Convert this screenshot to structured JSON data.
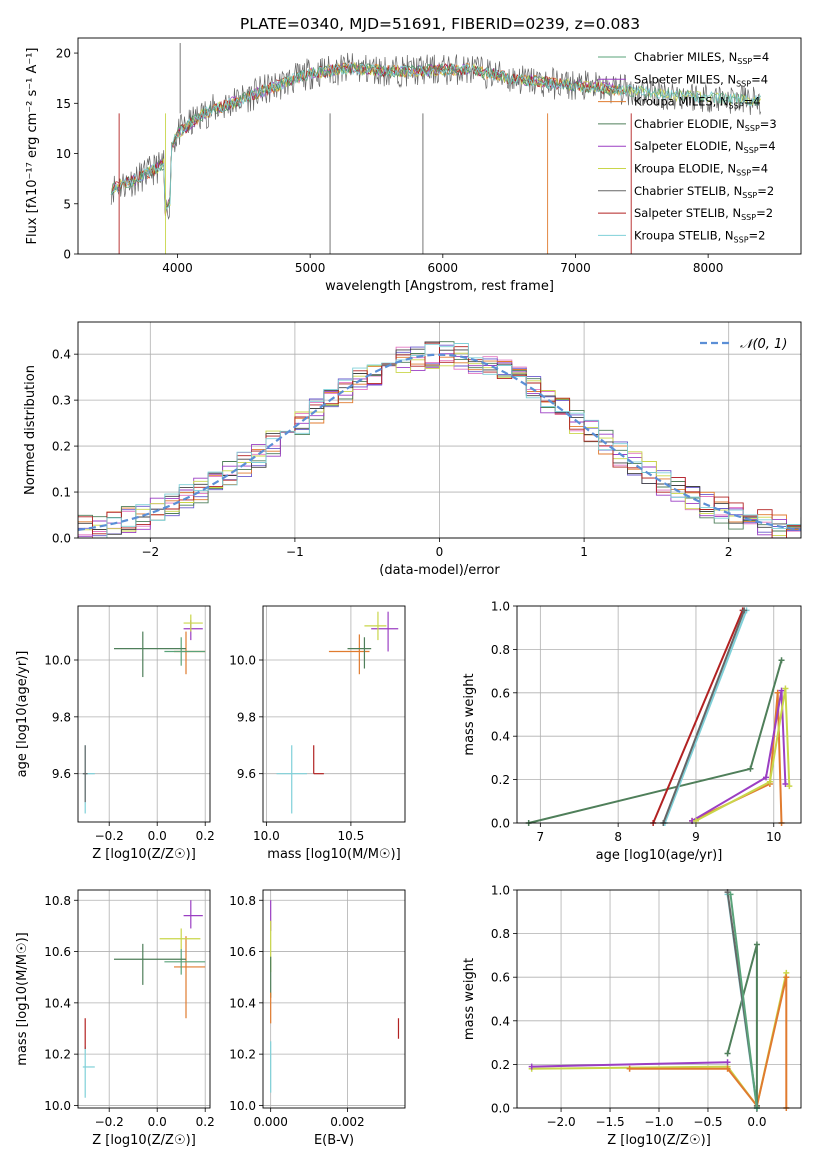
{
  "title": "PLATE=0340, MJD=51691, FIBERID=0239, z=0.083",
  "colors": {
    "chabrier_miles": "#5aa37a",
    "salpeter_miles": "#9b3fc3",
    "kroupa_miles": "#e07b2f",
    "chabrier_elodie": "#4f7f5a",
    "salpeter_elodie": "#9b3fc3",
    "kroupa_elodie": "#c9d64a",
    "chabrier_stelib": "#666666",
    "salpeter_stelib": "#b22222",
    "kroupa_stelib": "#7fd0d8",
    "grid": "#b0b0b0",
    "normal_curve": "#5b8fd6"
  },
  "chart_data": [
    {
      "id": "spectrum",
      "type": "line",
      "xlabel": "wavelength [Angstrom, rest frame]",
      "ylabel": "Flux [fλ10⁻¹⁷ erg cm⁻² s⁻¹ A⁻¹]",
      "xlim": [
        3250,
        8700
      ],
      "ylim": [
        0,
        21.5
      ],
      "xticks": [
        4000,
        5000,
        6000,
        7000,
        8000
      ],
      "yticks": [
        0,
        5,
        10,
        15,
        20
      ],
      "legend_location": "right",
      "legend": [
        {
          "label": "Chabrier MILES, N",
          "sub": "SSP",
          "tail": "=4",
          "color": "chabrier_miles"
        },
        {
          "label": "Salpeter MILES, N",
          "sub": "SSP",
          "tail": "=4",
          "color": "salpeter_miles"
        },
        {
          "label": "Kroupa MILES, N",
          "sub": "SSP",
          "tail": "=4",
          "color": "kroupa_miles"
        },
        {
          "label": "Chabrier ELODIE, N",
          "sub": "SSP",
          "tail": "=3",
          "color": "chabrier_elodie"
        },
        {
          "label": "Salpeter ELODIE, N",
          "sub": "SSP",
          "tail": "=4",
          "color": "salpeter_elodie"
        },
        {
          "label": "Kroupa ELODIE, N",
          "sub": "SSP",
          "tail": "=4",
          "color": "kroupa_elodie"
        },
        {
          "label": "Chabrier STELIB, N",
          "sub": "SSP",
          "tail": "=2",
          "color": "chabrier_stelib"
        },
        {
          "label": "Salpeter STELIB, N",
          "sub": "SSP",
          "tail": "=2",
          "color": "salpeter_stelib"
        },
        {
          "label": "Kroupa STELIB, N",
          "sub": "SSP",
          "tail": "=2",
          "color": "kroupa_stelib"
        }
      ],
      "continuum": {
        "x": [
          3500,
          3700,
          3900,
          4000,
          4200,
          4500,
          4800,
          5000,
          5300,
          5600,
          5900,
          6200,
          6500,
          6800,
          7000,
          7200,
          7400,
          7600,
          7800,
          8000,
          8200,
          8400
        ],
        "y": [
          6.5,
          7.5,
          9.0,
          12.0,
          14.0,
          15.5,
          17.0,
          18.0,
          18.5,
          18.2,
          18.3,
          18.4,
          17.5,
          17.0,
          16.8,
          16.5,
          16.3,
          16.0,
          15.8,
          15.6,
          15.4,
          15.2
        ]
      }
    },
    {
      "id": "residuals",
      "type": "line",
      "xlabel": "(data-model)/error",
      "ylabel": "Normed distribution",
      "xlim": [
        -2.5,
        2.5
      ],
      "ylim": [
        0,
        0.47
      ],
      "xticks": [
        -2,
        -1,
        0,
        1,
        2
      ],
      "xtick_labels": [
        "−2",
        "−1",
        "0",
        "1",
        "2"
      ],
      "yticks": [
        0.0,
        0.1,
        0.2,
        0.3,
        0.4
      ],
      "ytick_labels": [
        "0.0",
        "0.1",
        "0.2",
        "0.3",
        "0.4"
      ],
      "grid": true,
      "legend_location": "upper right",
      "legend_label": "𝒩(0, 1)",
      "bin_width": 0.1
    },
    {
      "id": "z_age",
      "type": "scatter",
      "xlabel": "Z [log10(Z/Z☉)]",
      "ylabel": "age [log10(age/yr)]",
      "xlim": [
        -0.33,
        0.22
      ],
      "ylim": [
        9.43,
        10.19
      ],
      "xticks": [
        -0.2,
        0.0,
        0.2
      ],
      "xtick_labels": [
        "−0.2",
        "0.0",
        "0.2"
      ],
      "yticks": [
        9.6,
        9.8,
        10.0
      ],
      "yticks_labels": [
        "9.6",
        "9.8",
        "10.0"
      ],
      "grid": true,
      "points": [
        {
          "x": 0.12,
          "y": 10.03,
          "ex": [
            0.05,
            0.08
          ],
          "ey": [
            0.08,
            0.07
          ],
          "color": "kroupa_miles"
        },
        {
          "x": 0.1,
          "y": 10.03,
          "ex": [
            0.07,
            0.1
          ],
          "ey": [
            0.05,
            0.05
          ],
          "color": "chabrier_miles"
        },
        {
          "x": -0.06,
          "y": 10.04,
          "ex": [
            0.12,
            0.18
          ],
          "ey": [
            0.1,
            0.06
          ],
          "color": "chabrier_elodie"
        },
        {
          "x": 0.14,
          "y": 10.11,
          "ex": [
            0.03,
            0.05
          ],
          "ey": [
            0.04,
            0.03
          ],
          "color": "salpeter_elodie"
        },
        {
          "x": 0.14,
          "y": 10.13,
          "ex": [
            0.03,
            0.05
          ],
          "ey": [
            0.03,
            0.03
          ],
          "color": "kroupa_elodie"
        },
        {
          "x": -0.3,
          "y": 9.6,
          "ex": [
            0.01,
            0.04
          ],
          "ey": [
            0.14,
            0.1
          ],
          "color": "kroupa_stelib"
        },
        {
          "x": -0.3,
          "y": 9.6,
          "ex": [
            0.01,
            0.01
          ],
          "ey": [
            0.1,
            0.1
          ],
          "color": "chabrier_stelib"
        }
      ]
    },
    {
      "id": "mass_age",
      "type": "scatter",
      "xlabel": "mass [log10(M/M☉)]",
      "ylabel": "",
      "xlim": [
        9.98,
        10.82
      ],
      "ylim": [
        9.43,
        10.19
      ],
      "xticks": [
        10.0,
        10.5
      ],
      "xtick_labels": [
        "10.0",
        "10.5"
      ],
      "yticks": [
        9.6,
        9.8,
        10.0
      ],
      "yticks_labels": [
        "9.6",
        "9.8",
        "10.0"
      ],
      "grid": true,
      "points": [
        {
          "x": 10.55,
          "y": 10.03,
          "ex": [
            0.18,
            0.06
          ],
          "ey": [
            0.08,
            0.06
          ],
          "color": "kroupa_miles"
        },
        {
          "x": 10.58,
          "y": 10.04,
          "ex": [
            0.1,
            0.04
          ],
          "ey": [
            0.07,
            0.04
          ],
          "color": "chabrier_elodie"
        },
        {
          "x": 10.72,
          "y": 10.11,
          "ex": [
            0.1,
            0.06
          ],
          "ey": [
            0.08,
            0.06
          ],
          "color": "salpeter_elodie"
        },
        {
          "x": 10.66,
          "y": 10.12,
          "ex": [
            0.08,
            0.05
          ],
          "ey": [
            0.05,
            0.05
          ],
          "color": "kroupa_elodie"
        },
        {
          "x": 10.15,
          "y": 9.6,
          "ex": [
            0.09,
            0.09
          ],
          "ey": [
            0.14,
            0.1
          ],
          "color": "kroupa_stelib"
        },
        {
          "x": 10.28,
          "y": 9.6,
          "ex": [
            0.0,
            0.06
          ],
          "ey": [
            0.0,
            0.1
          ],
          "color": "salpeter_stelib"
        }
      ]
    },
    {
      "id": "age_weight",
      "type": "line",
      "xlabel": "age [log10(age/yr)]",
      "ylabel": "mass weight",
      "xlim": [
        6.7,
        10.35
      ],
      "ylim": [
        0,
        1.0
      ],
      "xticks": [
        7,
        8,
        9,
        10
      ],
      "yticks": [
        0.0,
        0.2,
        0.4,
        0.6,
        0.8,
        1.0
      ],
      "yticks_labels": [
        "0.0",
        "0.2",
        "0.4",
        "0.6",
        "0.8",
        "1.0"
      ],
      "grid": true,
      "series": [
        {
          "color": "chabrier_elodie",
          "x": [
            6.85,
            9.7,
            10.1
          ],
          "y": [
            0.0,
            0.25,
            0.75
          ]
        },
        {
          "color": "salpeter_stelib",
          "x": [
            8.45,
            9.6
          ],
          "y": [
            0.0,
            0.98
          ]
        },
        {
          "color": "kroupa_stelib",
          "x": [
            8.6,
            9.65
          ],
          "y": [
            0.0,
            0.98
          ]
        },
        {
          "color": "chabrier_stelib",
          "x": [
            8.58,
            9.62
          ],
          "y": [
            0.0,
            0.98
          ]
        },
        {
          "color": "kroupa_miles",
          "x": [
            8.95,
            9.95,
            10.05,
            10.1
          ],
          "y": [
            0.01,
            0.18,
            0.6,
            0.0
          ]
        },
        {
          "color": "salpeter_elodie",
          "x": [
            8.95,
            9.9,
            10.1,
            10.15
          ],
          "y": [
            0.01,
            0.21,
            0.61,
            0.18
          ]
        },
        {
          "color": "kroupa_elodie",
          "x": [
            9.0,
            9.95,
            10.15,
            10.2
          ],
          "y": [
            0.01,
            0.19,
            0.62,
            0.17
          ]
        }
      ]
    },
    {
      "id": "z_mass",
      "type": "scatter",
      "xlabel": "Z [log10(Z/Z☉)]",
      "ylabel": "mass [log10(M/M☉)]",
      "xlim": [
        -0.33,
        0.22
      ],
      "ylim": [
        9.99,
        10.84
      ],
      "xticks": [
        -0.2,
        0.0,
        0.2
      ],
      "xtick_labels": [
        "−0.2",
        "0.0",
        "0.2"
      ],
      "yticks": [
        10.0,
        10.2,
        10.4,
        10.6,
        10.8
      ],
      "yticks_labels": [
        "10.0",
        "10.2",
        "10.4",
        "10.6",
        "10.8"
      ],
      "grid": true,
      "points": [
        {
          "x": 0.12,
          "y": 10.54,
          "ex": [
            0.05,
            0.08
          ],
          "ey": [
            0.2,
            0.12
          ],
          "color": "kroupa_miles"
        },
        {
          "x": 0.1,
          "y": 10.56,
          "ex": [
            0.07,
            0.1
          ],
          "ey": [
            0.05,
            0.05
          ],
          "color": "chabrier_miles"
        },
        {
          "x": -0.06,
          "y": 10.57,
          "ex": [
            0.12,
            0.18
          ],
          "ey": [
            0.1,
            0.06
          ],
          "color": "chabrier_elodie"
        },
        {
          "x": 0.14,
          "y": 10.74,
          "ex": [
            0.03,
            0.05
          ],
          "ey": [
            0.05,
            0.06
          ],
          "color": "salpeter_elodie"
        },
        {
          "x": 0.1,
          "y": 10.65,
          "ex": [
            0.09,
            0.08
          ],
          "ey": [
            0.04,
            0.04
          ],
          "color": "kroupa_elodie"
        },
        {
          "x": -0.3,
          "y": 10.15,
          "ex": [
            0.01,
            0.04
          ],
          "ey": [
            0.12,
            0.08
          ],
          "color": "kroupa_stelib"
        },
        {
          "x": -0.3,
          "y": 10.28,
          "ex": [
            0.0,
            0.0
          ],
          "ey": [
            0.06,
            0.06
          ],
          "color": "salpeter_stelib"
        }
      ]
    },
    {
      "id": "ebv_mass",
      "type": "scatter",
      "xlabel": "E(B-V)",
      "ylabel": "",
      "xlim": [
        -0.0002,
        0.0035
      ],
      "ylim": [
        9.99,
        10.84
      ],
      "xticks": [
        0.0,
        0.002
      ],
      "xtick_labels": [
        "0.000",
        "0.002"
      ],
      "yticks": [
        10.0,
        10.2,
        10.4,
        10.6,
        10.8
      ],
      "yticks_labels": [
        "10.0",
        "10.2",
        "10.4",
        "10.6",
        "10.8"
      ],
      "grid": true,
      "points": [
        {
          "x": 0.0,
          "y": 10.74,
          "ex": [
            0,
            0
          ],
          "ey": [
            0.06,
            0.06
          ],
          "color": "salpeter_elodie"
        },
        {
          "x": 0.0,
          "y": 10.62,
          "ex": [
            0,
            0
          ],
          "ey": [
            0.1,
            0.1
          ],
          "color": "kroupa_elodie"
        },
        {
          "x": 0.0,
          "y": 10.5,
          "ex": [
            0,
            0
          ],
          "ey": [
            0.08,
            0.08
          ],
          "color": "chabrier_elodie"
        },
        {
          "x": 0.0,
          "y": 10.38,
          "ex": [
            0,
            0
          ],
          "ey": [
            0.06,
            0.06
          ],
          "color": "kroupa_miles"
        },
        {
          "x": 0.0,
          "y": 10.15,
          "ex": [
            0,
            0
          ],
          "ey": [
            0.1,
            0.1
          ],
          "color": "kroupa_stelib"
        },
        {
          "x": 0.00333,
          "y": 10.3,
          "ex": [
            0,
            0
          ],
          "ey": [
            0.04,
            0.04
          ],
          "color": "salpeter_stelib"
        }
      ]
    },
    {
      "id": "z_weight",
      "type": "line",
      "xlabel": "Z [log10(Z/Z☉)]",
      "ylabel": "mass weight",
      "xlim": [
        -2.45,
        0.45
      ],
      "ylim": [
        0,
        1.0
      ],
      "xticks": [
        -2.0,
        -1.5,
        -1.0,
        -0.5,
        0.0
      ],
      "xtick_labels": [
        "−2.0",
        "−1.5",
        "−1.0",
        "−0.5",
        "0.0"
      ],
      "yticks": [
        0.0,
        0.2,
        0.4,
        0.6,
        0.8,
        1.0
      ],
      "yticks_labels": [
        "0.0",
        "0.2",
        "0.4",
        "0.6",
        "0.8",
        "1.0"
      ],
      "grid": true,
      "series": [
        {
          "color": "kroupa_elodie",
          "x": [
            -2.3,
            -0.3,
            0.0,
            0.3
          ],
          "y": [
            0.18,
            0.19,
            0.01,
            0.62
          ]
        },
        {
          "color": "salpeter_elodie",
          "x": [
            -2.3,
            -0.3
          ],
          "y": [
            0.19,
            0.21
          ]
        },
        {
          "color": "kroupa_miles",
          "x": [
            -1.3,
            -0.3,
            0.0,
            0.3,
            0.3
          ],
          "y": [
            0.18,
            0.18,
            0.01,
            0.6,
            0.0
          ]
        },
        {
          "color": "chabrier_elodie",
          "x": [
            -0.3,
            0.0,
            0.0
          ],
          "y": [
            0.25,
            0.75,
            0.0
          ]
        },
        {
          "color": "kroupa_stelib",
          "x": [
            -0.3,
            0.0
          ],
          "y": [
            0.98,
            0.0
          ]
        },
        {
          "color": "chabrier_stelib",
          "x": [
            -0.3,
            0.0
          ],
          "y": [
            0.99,
            0.01
          ]
        },
        {
          "color": "chabrier_miles",
          "x": [
            -0.27,
            0.0
          ],
          "y": [
            0.98,
            0.0
          ]
        }
      ]
    }
  ]
}
